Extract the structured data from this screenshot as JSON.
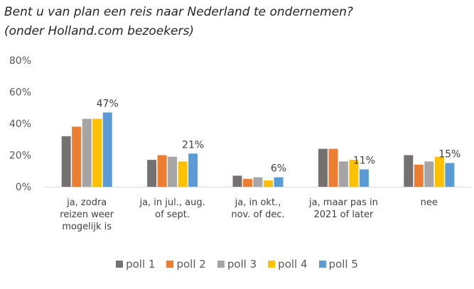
{
  "chart_data": {
    "type": "bar",
    "title": [
      "Bent u van plan een reis naar Nederland te ondernemen?",
      "(onder Holland.com bezoekers)"
    ],
    "categories": [
      [
        "ja, zodra",
        "reizen weer",
        "mogelijk is"
      ],
      [
        "ja, in jul., aug.",
        "of sept."
      ],
      [
        "ja, in okt.,",
        "nov. of dec."
      ],
      [
        "ja, maar pas in",
        "2021 of later"
      ],
      [
        "nee"
      ]
    ],
    "series": [
      {
        "name": "poll 1",
        "color": "#767171",
        "values": [
          32,
          17,
          7,
          24,
          20
        ]
      },
      {
        "name": "poll 2",
        "color": "#ED7D31",
        "values": [
          38,
          20,
          5,
          24,
          14
        ]
      },
      {
        "name": "poll 3",
        "color": "#A5A5A5",
        "values": [
          43,
          19,
          6,
          16,
          16
        ]
      },
      {
        "name": "poll 4",
        "color": "#FFC000",
        "values": [
          43,
          16,
          4,
          17,
          19
        ]
      },
      {
        "name": "poll 5",
        "color": "#5B9BD5",
        "values": [
          47,
          21,
          6,
          11,
          15
        ]
      }
    ],
    "data_labels": [
      {
        "series": 4,
        "category": 0,
        "text": "47%"
      },
      {
        "series": 4,
        "category": 1,
        "text": "21%"
      },
      {
        "series": 4,
        "category": 2,
        "text": "6%"
      },
      {
        "series": 4,
        "category": 3,
        "text": "11%"
      },
      {
        "series": 4,
        "category": 4,
        "text": "15%"
      }
    ],
    "yticks": [
      "0%",
      "20%",
      "40%",
      "60%",
      "80%"
    ],
    "ylim": [
      0,
      80
    ],
    "grid": false,
    "legend": "bottom"
  }
}
